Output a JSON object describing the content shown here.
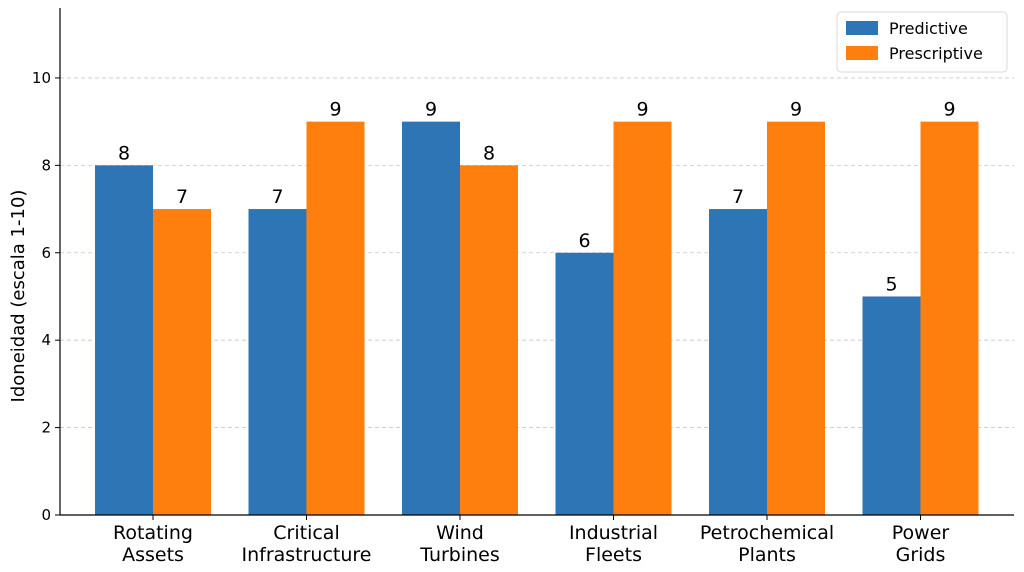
{
  "chart_data": {
    "type": "bar",
    "title": "",
    "xlabel": "",
    "ylabel": "Idoneidad (escala 1-10)",
    "ylim": [
      0,
      11.6
    ],
    "yticks": [
      0,
      2,
      4,
      6,
      8,
      10
    ],
    "grid": "horizontal dashed",
    "legend_position": "top-right",
    "categories": [
      [
        "Rotating",
        "Assets"
      ],
      [
        "Critical",
        "Infrastructure"
      ],
      [
        "Wind",
        "Turbines"
      ],
      [
        "Industrial",
        "Fleets"
      ],
      [
        "Petrochemical",
        "Plants"
      ],
      [
        "Power",
        "Grids"
      ]
    ],
    "series": [
      {
        "name": "Predictive",
        "color": "#2e75b6",
        "values": [
          8,
          7,
          9,
          6,
          7,
          5
        ]
      },
      {
        "name": "Prescriptive",
        "color": "#ff7f0e",
        "values": [
          7,
          9,
          8,
          9,
          9,
          9
        ]
      }
    ]
  }
}
